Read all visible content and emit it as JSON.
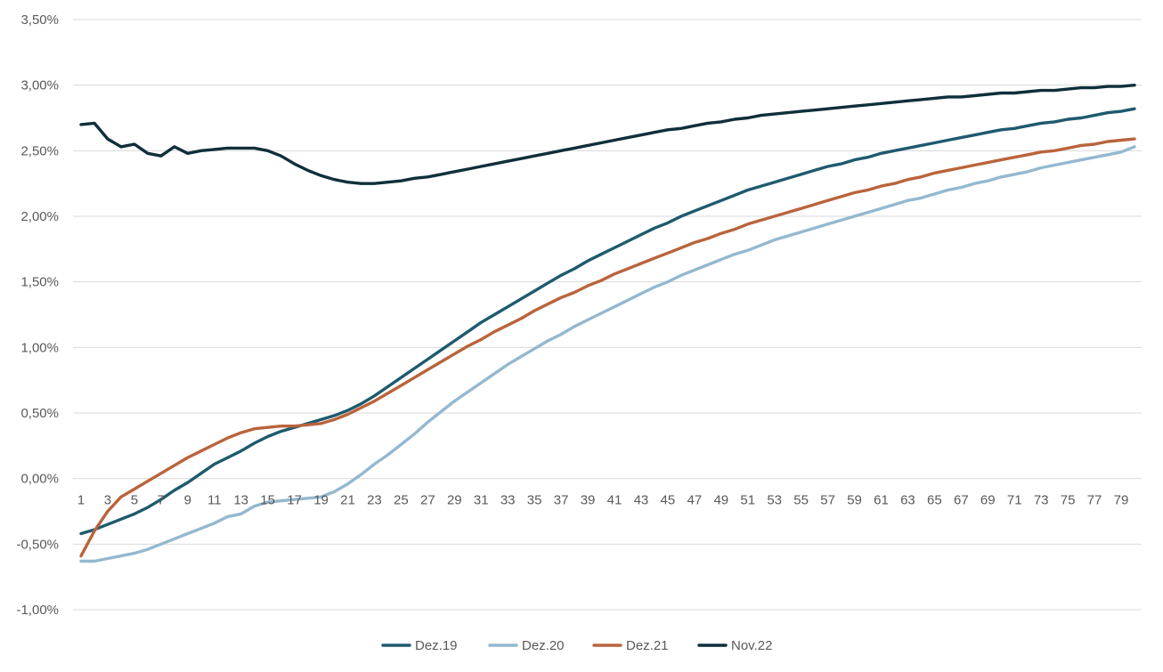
{
  "chart_data": {
    "type": "line",
    "title": "",
    "xlabel": "",
    "ylabel": "",
    "x": [
      1,
      2,
      3,
      4,
      5,
      6,
      7,
      8,
      9,
      10,
      11,
      12,
      13,
      14,
      15,
      16,
      17,
      18,
      19,
      20,
      21,
      22,
      23,
      24,
      25,
      26,
      27,
      28,
      29,
      30,
      31,
      32,
      33,
      34,
      35,
      36,
      37,
      38,
      39,
      40,
      41,
      42,
      43,
      44,
      45,
      46,
      47,
      48,
      49,
      50,
      51,
      52,
      53,
      54,
      55,
      56,
      57,
      58,
      59,
      60,
      61,
      62,
      63,
      64,
      65,
      66,
      67,
      68,
      69,
      70,
      71,
      72,
      73,
      74,
      75,
      76,
      77,
      78,
      79,
      80
    ],
    "x_tick_labels": [
      "1",
      "3",
      "5",
      "7",
      "9",
      "11",
      "13",
      "15",
      "17",
      "19",
      "21",
      "23",
      "25",
      "27",
      "29",
      "31",
      "33",
      "35",
      "37",
      "39",
      "41",
      "43",
      "45",
      "47",
      "49",
      "51",
      "53",
      "55",
      "57",
      "59",
      "61",
      "63",
      "65",
      "67",
      "69",
      "71",
      "73",
      "75",
      "77",
      "79"
    ],
    "y_ticks": [
      -1.0,
      -0.5,
      0.0,
      0.5,
      1.0,
      1.5,
      2.0,
      2.5,
      3.0,
      3.5
    ],
    "y_tick_labels": [
      "-1,00%",
      "-0,50%",
      "0,00%",
      "0,50%",
      "1,00%",
      "1,50%",
      "2,00%",
      "2,50%",
      "3,00%",
      "3,50%"
    ],
    "ylim": [
      -1.0,
      3.5
    ],
    "grid": "horizontal",
    "legend_position": "bottom",
    "series": [
      {
        "name": "Dez.19",
        "color": "#1e5a6e",
        "values": [
          -0.42,
          -0.39,
          -0.35,
          -0.31,
          -0.27,
          -0.22,
          -0.16,
          -0.09,
          -0.03,
          0.04,
          0.11,
          0.16,
          0.21,
          0.27,
          0.32,
          0.36,
          0.39,
          0.42,
          0.45,
          0.48,
          0.52,
          0.57,
          0.63,
          0.7,
          0.77,
          0.84,
          0.91,
          0.98,
          1.05,
          1.12,
          1.19,
          1.25,
          1.31,
          1.37,
          1.43,
          1.49,
          1.55,
          1.6,
          1.66,
          1.71,
          1.76,
          1.81,
          1.86,
          1.91,
          1.95,
          2.0,
          2.04,
          2.08,
          2.12,
          2.16,
          2.2,
          2.23,
          2.26,
          2.29,
          2.32,
          2.35,
          2.38,
          2.4,
          2.43,
          2.45,
          2.48,
          2.5,
          2.52,
          2.54,
          2.56,
          2.58,
          2.6,
          2.62,
          2.64,
          2.66,
          2.67,
          2.69,
          2.71,
          2.72,
          2.74,
          2.75,
          2.77,
          2.79,
          2.8,
          2.82
        ]
      },
      {
        "name": "Dez.20",
        "color": "#94b8cf",
        "values": [
          -0.63,
          -0.63,
          -0.61,
          -0.59,
          -0.57,
          -0.54,
          -0.5,
          -0.46,
          -0.42,
          -0.38,
          -0.34,
          -0.29,
          -0.27,
          -0.21,
          -0.18,
          -0.17,
          -0.16,
          -0.15,
          -0.14,
          -0.1,
          -0.04,
          0.03,
          0.11,
          0.18,
          0.26,
          0.34,
          0.43,
          0.51,
          0.59,
          0.66,
          0.73,
          0.8,
          0.87,
          0.93,
          0.99,
          1.05,
          1.1,
          1.16,
          1.21,
          1.26,
          1.31,
          1.36,
          1.41,
          1.46,
          1.5,
          1.55,
          1.59,
          1.63,
          1.67,
          1.71,
          1.74,
          1.78,
          1.82,
          1.85,
          1.88,
          1.91,
          1.94,
          1.97,
          2.0,
          2.03,
          2.06,
          2.09,
          2.12,
          2.14,
          2.17,
          2.2,
          2.22,
          2.25,
          2.27,
          2.3,
          2.32,
          2.34,
          2.37,
          2.39,
          2.41,
          2.43,
          2.45,
          2.47,
          2.49,
          2.53
        ]
      },
      {
        "name": "Dez.21",
        "color": "#b9643c",
        "values": [
          -0.59,
          -0.4,
          -0.25,
          -0.14,
          -0.08,
          -0.02,
          0.04,
          0.1,
          0.16,
          0.21,
          0.26,
          0.31,
          0.35,
          0.38,
          0.39,
          0.4,
          0.4,
          0.41,
          0.42,
          0.45,
          0.49,
          0.54,
          0.59,
          0.65,
          0.71,
          0.77,
          0.83,
          0.89,
          0.95,
          1.01,
          1.06,
          1.12,
          1.17,
          1.22,
          1.28,
          1.33,
          1.38,
          1.42,
          1.47,
          1.51,
          1.56,
          1.6,
          1.64,
          1.68,
          1.72,
          1.76,
          1.8,
          1.83,
          1.87,
          1.9,
          1.94,
          1.97,
          2.0,
          2.03,
          2.06,
          2.09,
          2.12,
          2.15,
          2.18,
          2.2,
          2.23,
          2.25,
          2.28,
          2.3,
          2.33,
          2.35,
          2.37,
          2.39,
          2.41,
          2.43,
          2.45,
          2.47,
          2.49,
          2.5,
          2.52,
          2.54,
          2.55,
          2.57,
          2.58,
          2.59
        ]
      },
      {
        "name": "Nov.22",
        "color": "#0f2f3a",
        "values": [
          2.7,
          2.71,
          2.59,
          2.53,
          2.55,
          2.48,
          2.46,
          2.53,
          2.48,
          2.5,
          2.51,
          2.52,
          2.52,
          2.52,
          2.5,
          2.46,
          2.4,
          2.35,
          2.31,
          2.28,
          2.26,
          2.25,
          2.25,
          2.26,
          2.27,
          2.29,
          2.3,
          2.32,
          2.34,
          2.36,
          2.38,
          2.4,
          2.42,
          2.44,
          2.46,
          2.48,
          2.5,
          2.52,
          2.54,
          2.56,
          2.58,
          2.6,
          2.62,
          2.64,
          2.66,
          2.67,
          2.69,
          2.71,
          2.72,
          2.74,
          2.75,
          2.77,
          2.78,
          2.79,
          2.8,
          2.81,
          2.82,
          2.83,
          2.84,
          2.85,
          2.86,
          2.87,
          2.88,
          2.89,
          2.9,
          2.91,
          2.91,
          2.92,
          2.93,
          2.94,
          2.94,
          2.95,
          2.96,
          2.96,
          2.97,
          2.98,
          2.98,
          2.99,
          2.99,
          3.0
        ]
      }
    ]
  }
}
